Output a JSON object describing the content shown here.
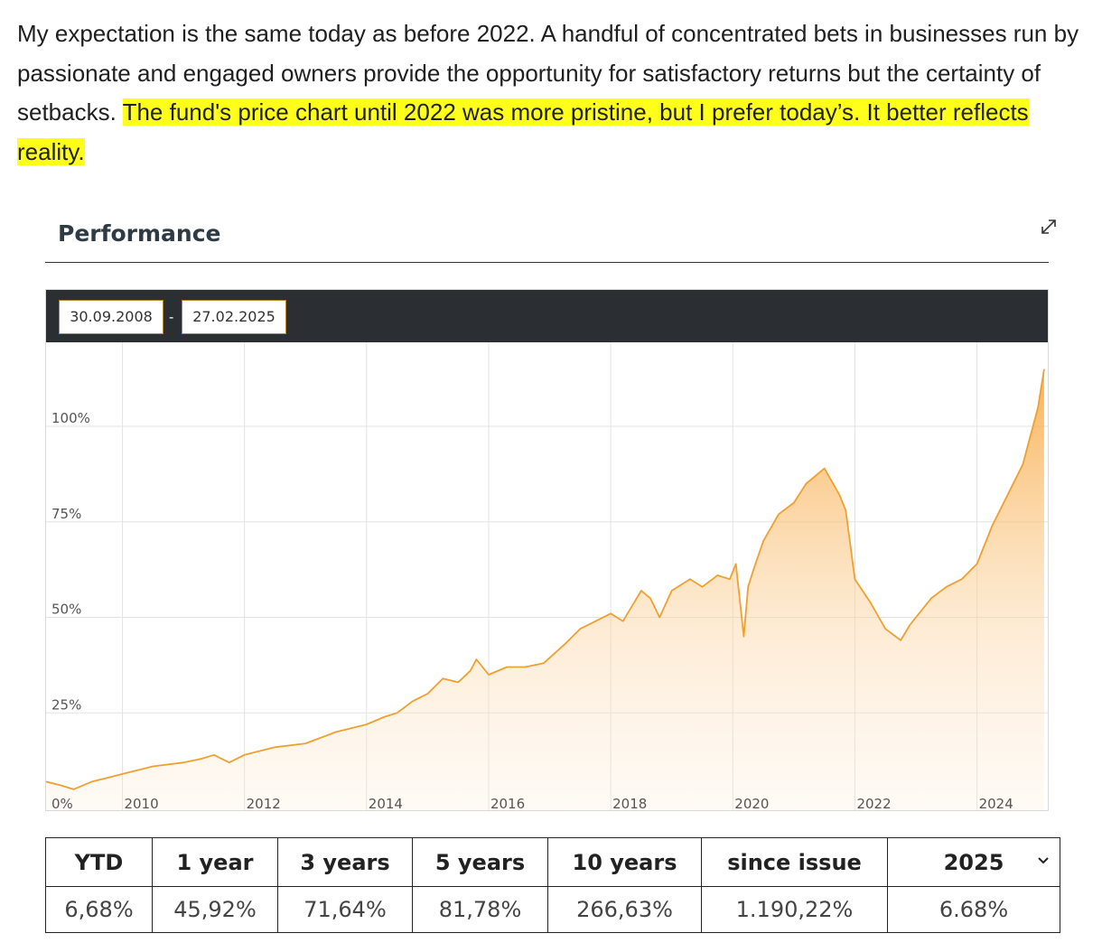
{
  "paragraph": {
    "plain": "My expectation is the same today as before 2022. A handful of concentrated bets in businesses run by passionate and engaged owners provide the opportunity for satisfactory returns but the certainty of setbacks. ",
    "highlighted": "The fund's price chart until 2022 was more pristine, but I prefer today’s. It better reflects reality."
  },
  "performance": {
    "title": "Performance",
    "expand_icon": "expand-arrows-icon",
    "date_from": "30.09.2008",
    "date_separator": "-",
    "date_to": "27.02.2025"
  },
  "colors": {
    "line": "#f0a030",
    "fill": "#f7b560",
    "header": "#2b2f33",
    "highlight": "#ffff1a"
  },
  "chart_data": {
    "type": "area",
    "x_ticks": [
      "2010",
      "2012",
      "2014",
      "2016",
      "2018",
      "2020",
      "2022",
      "2024"
    ],
    "y_ticks": [
      "0%",
      "25%",
      "50%",
      "75%",
      "100%"
    ],
    "y_tick_values": [
      0,
      25,
      50,
      75,
      100
    ],
    "xlim": [
      2008.75,
      2025.16
    ],
    "ylim": [
      0,
      122
    ],
    "grid": true,
    "series": [
      {
        "x": [
          2008.75,
          2009.0,
          2009.2,
          2009.5,
          2009.75,
          2010.0,
          2010.5,
          2011.0,
          2011.3,
          2011.5,
          2011.75,
          2012.0,
          2012.5,
          2013.0,
          2013.5,
          2013.75,
          2014.0,
          2014.3,
          2014.5,
          2014.75,
          2015.0,
          2015.25,
          2015.5,
          2015.7,
          2015.8,
          2016.0,
          2016.3,
          2016.6,
          2016.9,
          2017.25,
          2017.5,
          2017.75,
          2018.0,
          2018.2,
          2018.5,
          2018.65,
          2018.8,
          2019.0,
          2019.3,
          2019.5,
          2019.75,
          2019.95,
          2020.05,
          2020.18,
          2020.25,
          2020.35,
          2020.5,
          2020.75,
          2021.0,
          2021.2,
          2021.5,
          2021.75,
          2021.85,
          2022.0,
          2022.25,
          2022.5,
          2022.75,
          2022.9,
          2023.0,
          2023.25,
          2023.5,
          2023.75,
          2024.0,
          2024.25,
          2024.5,
          2024.75,
          2025.0,
          2025.1
        ],
        "y": [
          7,
          6,
          5,
          7,
          8,
          9,
          11,
          12,
          13,
          14,
          12,
          14,
          16,
          17,
          20,
          21,
          22,
          24,
          25,
          28,
          30,
          34,
          33,
          36,
          39,
          35,
          37,
          37,
          38,
          43,
          47,
          49,
          51,
          49,
          57,
          55,
          50,
          57,
          60,
          58,
          61,
          60,
          64,
          45,
          58,
          63,
          70,
          77,
          80,
          85,
          89,
          82,
          78,
          60,
          54,
          47,
          44,
          48,
          50,
          55,
          58,
          60,
          64,
          74,
          82,
          90,
          105,
          115
        ]
      }
    ]
  },
  "returns": {
    "headers": [
      "YTD",
      "1 year",
      "3 years",
      "5 years",
      "10 years",
      "since issue",
      "2025"
    ],
    "values": [
      "6,68%",
      "45,92%",
      "71,64%",
      "81,78%",
      "266,63%",
      "1.190,22%",
      "6.68%"
    ],
    "year_select_icon": "chevron-down-icon"
  }
}
